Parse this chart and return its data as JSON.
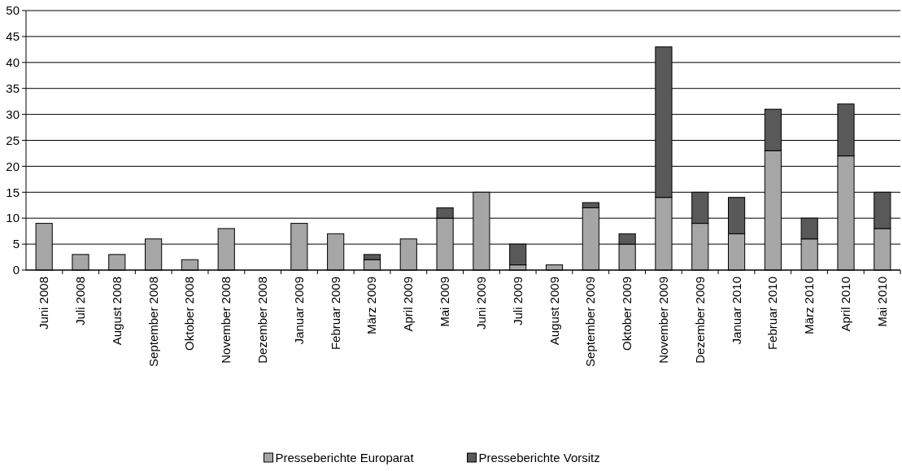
{
  "chart_data": {
    "type": "bar",
    "stacked": true,
    "categories": [
      "Juni 2008",
      "Juli 2008",
      "August 2008",
      "September 2008",
      "Oktober 2008",
      "November 2008",
      "Dezember 2008",
      "Januar 2009",
      "Februar 2009",
      "März 2009",
      "April 2009",
      "Mai 2009",
      "Juni 2009",
      "Juli 2009",
      "August 2009",
      "September 2009",
      "Oktober 2009",
      "November 2009",
      "Dezember 2009",
      "Januar 2010",
      "Februar 2010",
      "März 2010",
      "April 2010",
      "Mai 2010"
    ],
    "series": [
      {
        "name": "Presseberichte Europarat",
        "color": "#a6a6a6",
        "values": [
          9,
          3,
          3,
          6,
          2,
          8,
          0,
          9,
          7,
          2,
          6,
          10,
          15,
          1,
          1,
          12,
          5,
          14,
          9,
          7,
          23,
          6,
          22,
          8
        ]
      },
      {
        "name": "Presseberichte Vorsitz",
        "color": "#595959",
        "values": [
          0,
          0,
          0,
          0,
          0,
          0,
          0,
          0,
          0,
          1,
          0,
          2,
          0,
          4,
          0,
          1,
          2,
          29,
          6,
          7,
          8,
          4,
          10,
          7
        ]
      }
    ],
    "ylim": [
      0,
      50
    ],
    "yticks": [
      0,
      5,
      10,
      15,
      20,
      25,
      30,
      35,
      40,
      45,
      50
    ],
    "grid": "y",
    "legend": "bottom"
  }
}
